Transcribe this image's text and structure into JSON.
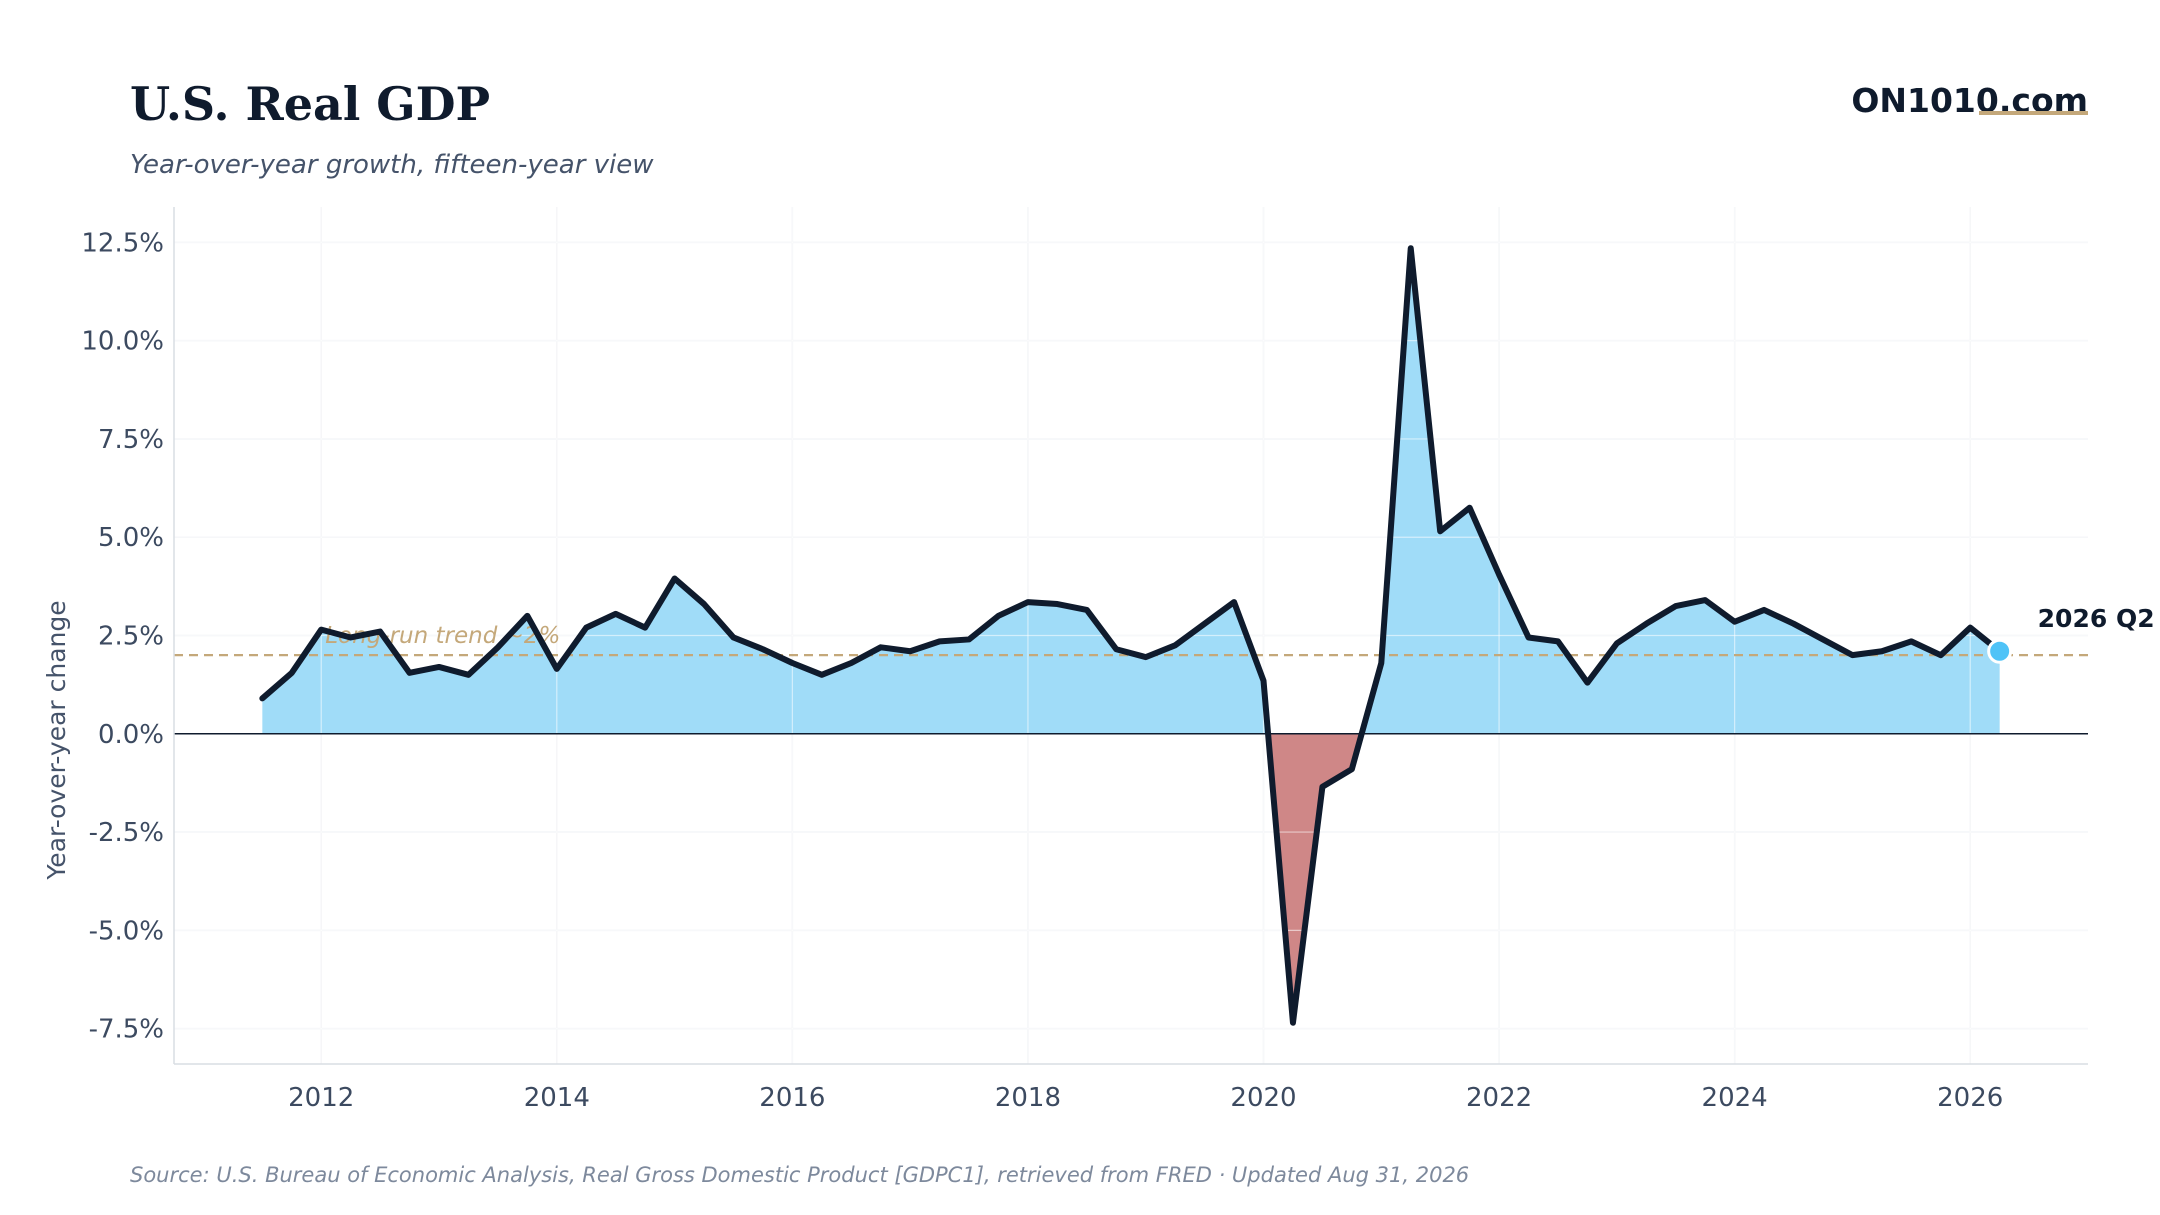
{
  "header": {
    "title": "U.S. Real GDP",
    "subtitle": "Year-over-year growth, fifteen-year view",
    "brand": "ON1010.com"
  },
  "footer": {
    "source": "Source: U.S. Bureau of Economic Analysis, Real Gross Domestic Product [GDPC1], retrieved from FRED · Updated Aug 31, 2026"
  },
  "colors": {
    "positive_fill": "#a0dcf8",
    "negative_fill": "#cf8787",
    "line": "#0f1b2d",
    "trend": "#c4a87a",
    "accent_dot": "#4fc3f7",
    "brand_underline": "#c4a87a",
    "grid": "#eef0f3"
  },
  "chart_data": {
    "type": "area",
    "title": "U.S. Real GDP",
    "subtitle": "Year-over-year growth, fifteen-year view",
    "xlabel": "",
    "ylabel": "Year-over-year change",
    "xlim": [
      2010.75,
      2027.0
    ],
    "ylim": [
      -8.4,
      13.4
    ],
    "x_ticks": [
      2012,
      2014,
      2016,
      2018,
      2020,
      2022,
      2024,
      2026
    ],
    "y_ticks": [
      -7.5,
      -5.0,
      -2.5,
      0.0,
      2.5,
      5.0,
      7.5,
      10.0,
      12.5
    ],
    "y_tick_labels": [
      "-7.5%",
      "-5.0%",
      "-2.5%",
      "0.0%",
      "2.5%",
      "5.0%",
      "7.5%",
      "10.0%",
      "12.5%"
    ],
    "grid": true,
    "series": [
      {
        "x": [
          2011.5,
          2011.75,
          2012.0,
          2012.25,
          2012.5,
          2012.75,
          2013.0,
          2013.25,
          2013.5,
          2013.75,
          2014.0,
          2014.25,
          2014.5,
          2014.75,
          2015.0,
          2015.25,
          2015.5,
          2015.75,
          2016.0,
          2016.25,
          2016.5,
          2016.75,
          2017.0,
          2017.25,
          2017.5,
          2017.75,
          2018.0,
          2018.25,
          2018.5,
          2018.75,
          2019.0,
          2019.25,
          2019.5,
          2019.75,
          2020.0,
          2020.25,
          2020.5,
          2020.75,
          2021.0,
          2021.25,
          2021.5,
          2021.75,
          2022.0,
          2022.25,
          2022.5,
          2022.75,
          2023.0,
          2023.25,
          2023.5,
          2023.75,
          2024.0,
          2024.25,
          2024.5,
          2024.75,
          2025.0,
          2025.25,
          2025.5,
          2025.75,
          2026.0,
          2026.25
        ],
        "values": [
          0.9,
          1.55,
          2.65,
          2.45,
          2.6,
          1.55,
          1.7,
          1.5,
          2.2,
          3.0,
          1.65,
          2.7,
          3.05,
          2.7,
          3.95,
          3.3,
          2.45,
          2.15,
          1.8,
          1.5,
          1.8,
          2.2,
          2.1,
          2.35,
          2.4,
          3.0,
          3.35,
          3.3,
          3.15,
          2.15,
          1.95,
          2.25,
          2.8,
          3.35,
          1.35,
          -7.35,
          -1.35,
          -0.9,
          1.8,
          12.35,
          5.15,
          5.75,
          4.05,
          2.45,
          2.35,
          1.3,
          2.3,
          2.8,
          3.25,
          3.4,
          2.85,
          3.15,
          2.8,
          2.4,
          2.0,
          2.1,
          2.35,
          2.0,
          2.7,
          2.1
        ]
      }
    ],
    "reference_line": {
      "value": 2.0,
      "label": "Long-run trend ~2%"
    },
    "annotation": {
      "label": "2026 Q2",
      "x": 2026.25,
      "y": 2.1
    }
  }
}
